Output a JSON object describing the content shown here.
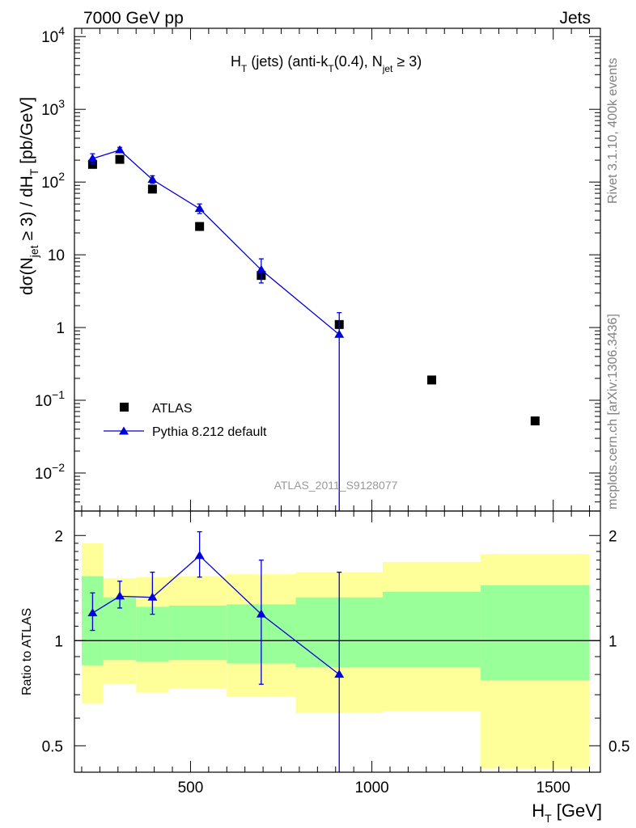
{
  "header": {
    "left": "7000 GeV pp",
    "right": "Jets",
    "side_top": "Rivet 3.1.10,  400k events",
    "side_bottom": "mcplots.cern.ch [arXiv:1306.3436]"
  },
  "colors": {
    "mc": "#0000dd",
    "band_inner": "#99ff99",
    "band_outer": "#ffff99",
    "data": "#000000",
    "watermark": "#999999"
  },
  "chart_data": [
    {
      "type": "scatter",
      "panel": "main",
      "title_parts": {
        "a": "H",
        "a_sub": "T",
        "b": " (jets) (anti-k",
        "b_sub": "T",
        "c": "(0.4), N",
        "c_sub": "jet",
        "d": " ≥ 3)"
      },
      "ylabel_parts": {
        "a": "dσ(N",
        "a_sub": "jet",
        "b": " ≥ 3) / dH",
        "b_sub": "T",
        "c": " [pb/GeV]"
      },
      "xlabel_parts": {
        "a": "H",
        "a_sub": "T",
        "b": " [GeV]"
      },
      "watermark": "ATLAS_2011_S9128077",
      "y_scale": "log",
      "xlim": [
        180,
        1630
      ],
      "ylim": [
        0.003,
        13000
      ],
      "x_ticks": [
        500,
        1000,
        1500
      ],
      "x_tick_labels": [
        "500",
        "1000",
        "1500"
      ],
      "y_tick_labels": [
        {
          "y": 10000,
          "mant": "10",
          "exp": "4"
        },
        {
          "y": 1000,
          "mant": "10",
          "exp": "3"
        },
        {
          "y": 100,
          "mant": "10",
          "exp": "2"
        },
        {
          "y": 10,
          "mant": "10",
          "exp": ""
        },
        {
          "y": 1,
          "mant": "1",
          "exp": ""
        },
        {
          "y": 0.1,
          "mant": "10",
          "exp": "−1"
        },
        {
          "y": 0.01,
          "mant": "10",
          "exp": "−2"
        }
      ],
      "legend": {
        "placement": "lower-left",
        "entries": [
          "ATLAS",
          "Pythia 8.212 default"
        ]
      },
      "series": [
        {
          "name": "ATLAS",
          "marker": "square",
          "x": [
            230,
            305,
            395,
            525,
            695,
            910,
            1165,
            1450
          ],
          "y": [
            175,
            205,
            80,
            24.5,
            5.2,
            1.1,
            0.19,
            0.052
          ],
          "xerr": [
            30,
            45,
            45,
            75,
            95,
            115,
            130,
            150
          ]
        },
        {
          "name": "Pythia 8.212 default",
          "marker": "triangle",
          "x": [
            230,
            305,
            395,
            525,
            695,
            910
          ],
          "y": [
            210,
            275,
            108,
            43,
            6.2,
            0.8
          ],
          "ylow": [
            180,
            255,
            96,
            37,
            4.1,
            0.001
          ],
          "yhigh": [
            245,
            300,
            122,
            50,
            8.8,
            1.6
          ]
        }
      ]
    },
    {
      "type": "scatter",
      "panel": "ratio",
      "ylabel": "Ratio to ATLAS",
      "y_scale": "log",
      "xlim": [
        180,
        1630
      ],
      "ylim": [
        0.42,
        2.35
      ],
      "y_ticks": [
        0.5,
        1,
        2
      ],
      "y_tick_labels": [
        "0.5",
        "1",
        "2"
      ],
      "reference_line": 1,
      "bands": {
        "edges": [
          200,
          260,
          350,
          440,
          600,
          790,
          1030,
          1300,
          1600
        ],
        "inner_low": [
          0.85,
          0.88,
          0.87,
          0.88,
          0.86,
          0.84,
          0.84,
          0.77
        ],
        "inner_high": [
          1.53,
          1.33,
          1.25,
          1.26,
          1.27,
          1.33,
          1.38,
          1.44
        ],
        "outer_low": [
          0.66,
          0.75,
          0.71,
          0.73,
          0.69,
          0.62,
          0.63,
          0.43
        ],
        "outer_high": [
          1.9,
          1.51,
          1.52,
          1.53,
          1.55,
          1.57,
          1.68,
          1.77
        ]
      },
      "series": [
        {
          "name": "Pythia 8.212 default",
          "x": [
            230,
            305,
            395,
            525,
            695,
            910
          ],
          "y": [
            1.2,
            1.34,
            1.33,
            1.75,
            1.19,
            0.8
          ],
          "ylow": [
            1.07,
            1.24,
            1.19,
            1.52,
            0.75,
            0.001
          ],
          "yhigh": [
            1.37,
            1.48,
            1.57,
            2.05,
            1.7,
            1.57
          ]
        }
      ]
    }
  ]
}
